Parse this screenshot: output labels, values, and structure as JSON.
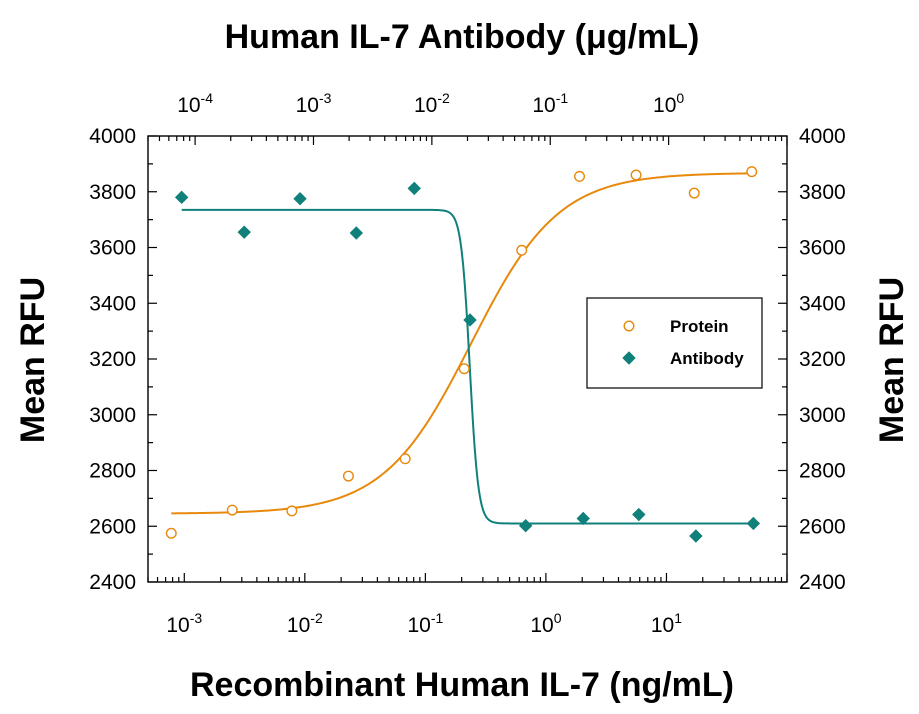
{
  "chart_data": {
    "type": "scatter",
    "top_axis_title": "Human IL-7 Antibody (μg/mL)",
    "xlabel": "Recombinant Human IL-7 (ng/mL)",
    "ylabel_left": "Mean RFU",
    "ylabel_right": "Mean RFU",
    "x_scale": "log",
    "x_bottom_range": [
      0.0005,
      100
    ],
    "x_bottom_ticks": [
      {
        "base": "10",
        "exp": "-3",
        "value": 0.001
      },
      {
        "base": "10",
        "exp": "-2",
        "value": 0.01
      },
      {
        "base": "10",
        "exp": "-1",
        "value": 0.1
      },
      {
        "base": "10",
        "exp": "0",
        "value": 1
      },
      {
        "base": "10",
        "exp": "1",
        "value": 10
      }
    ],
    "x_top_range": [
      4e-05,
      10
    ],
    "x_top_ticks": [
      {
        "base": "10",
        "exp": "-4",
        "value": 0.0001
      },
      {
        "base": "10",
        "exp": "-3",
        "value": 0.001
      },
      {
        "base": "10",
        "exp": "-2",
        "value": 0.01
      },
      {
        "base": "10",
        "exp": "-1",
        "value": 0.1
      },
      {
        "base": "10",
        "exp": "0",
        "value": 1
      }
    ],
    "ylim": [
      2400,
      4000
    ],
    "y_ticks": [
      "2400",
      "2600",
      "2800",
      "3000",
      "3200",
      "3400",
      "3600",
      "3800",
      "4000"
    ],
    "grid": false,
    "legend_position": "right-middle",
    "series": [
      {
        "name": "Protein",
        "axis": "bottom",
        "marker": "open-circle",
        "color": "#E8890C",
        "points": [
          {
            "x": 0.00078,
            "y": 2575
          },
          {
            "x": 0.0025,
            "y": 2658
          },
          {
            "x": 0.0078,
            "y": 2655
          },
          {
            "x": 0.023,
            "y": 2780
          },
          {
            "x": 0.068,
            "y": 2842
          },
          {
            "x": 0.21,
            "y": 3165
          },
          {
            "x": 0.63,
            "y": 3590
          },
          {
            "x": 1.9,
            "y": 3855
          },
          {
            "x": 5.6,
            "y": 3860
          },
          {
            "x": 17,
            "y": 3795
          },
          {
            "x": 51,
            "y": 3872
          }
        ],
        "fit": {
          "bottom": 2645,
          "top": 3868,
          "ec50": 0.24,
          "hill": 1.2
        }
      },
      {
        "name": "Antibody",
        "axis": "top",
        "marker": "filled-diamond",
        "color": "#10807A",
        "points": [
          {
            "x": 7.7e-05,
            "y": 3780
          },
          {
            "x": 0.00026,
            "y": 3655
          },
          {
            "x": 0.00077,
            "y": 3775
          },
          {
            "x": 0.0023,
            "y": 3652
          },
          {
            "x": 0.0071,
            "y": 3812
          },
          {
            "x": 0.021,
            "y": 3340
          },
          {
            "x": 0.062,
            "y": 2602
          },
          {
            "x": 0.19,
            "y": 2628
          },
          {
            "x": 0.56,
            "y": 2642
          },
          {
            "x": 1.7,
            "y": 2565
          },
          {
            "x": 5.2,
            "y": 2610
          }
        ],
        "fit": {
          "bottom": 2610,
          "top": 3735,
          "ic50": 0.0209,
          "hill": -12
        }
      }
    ]
  }
}
